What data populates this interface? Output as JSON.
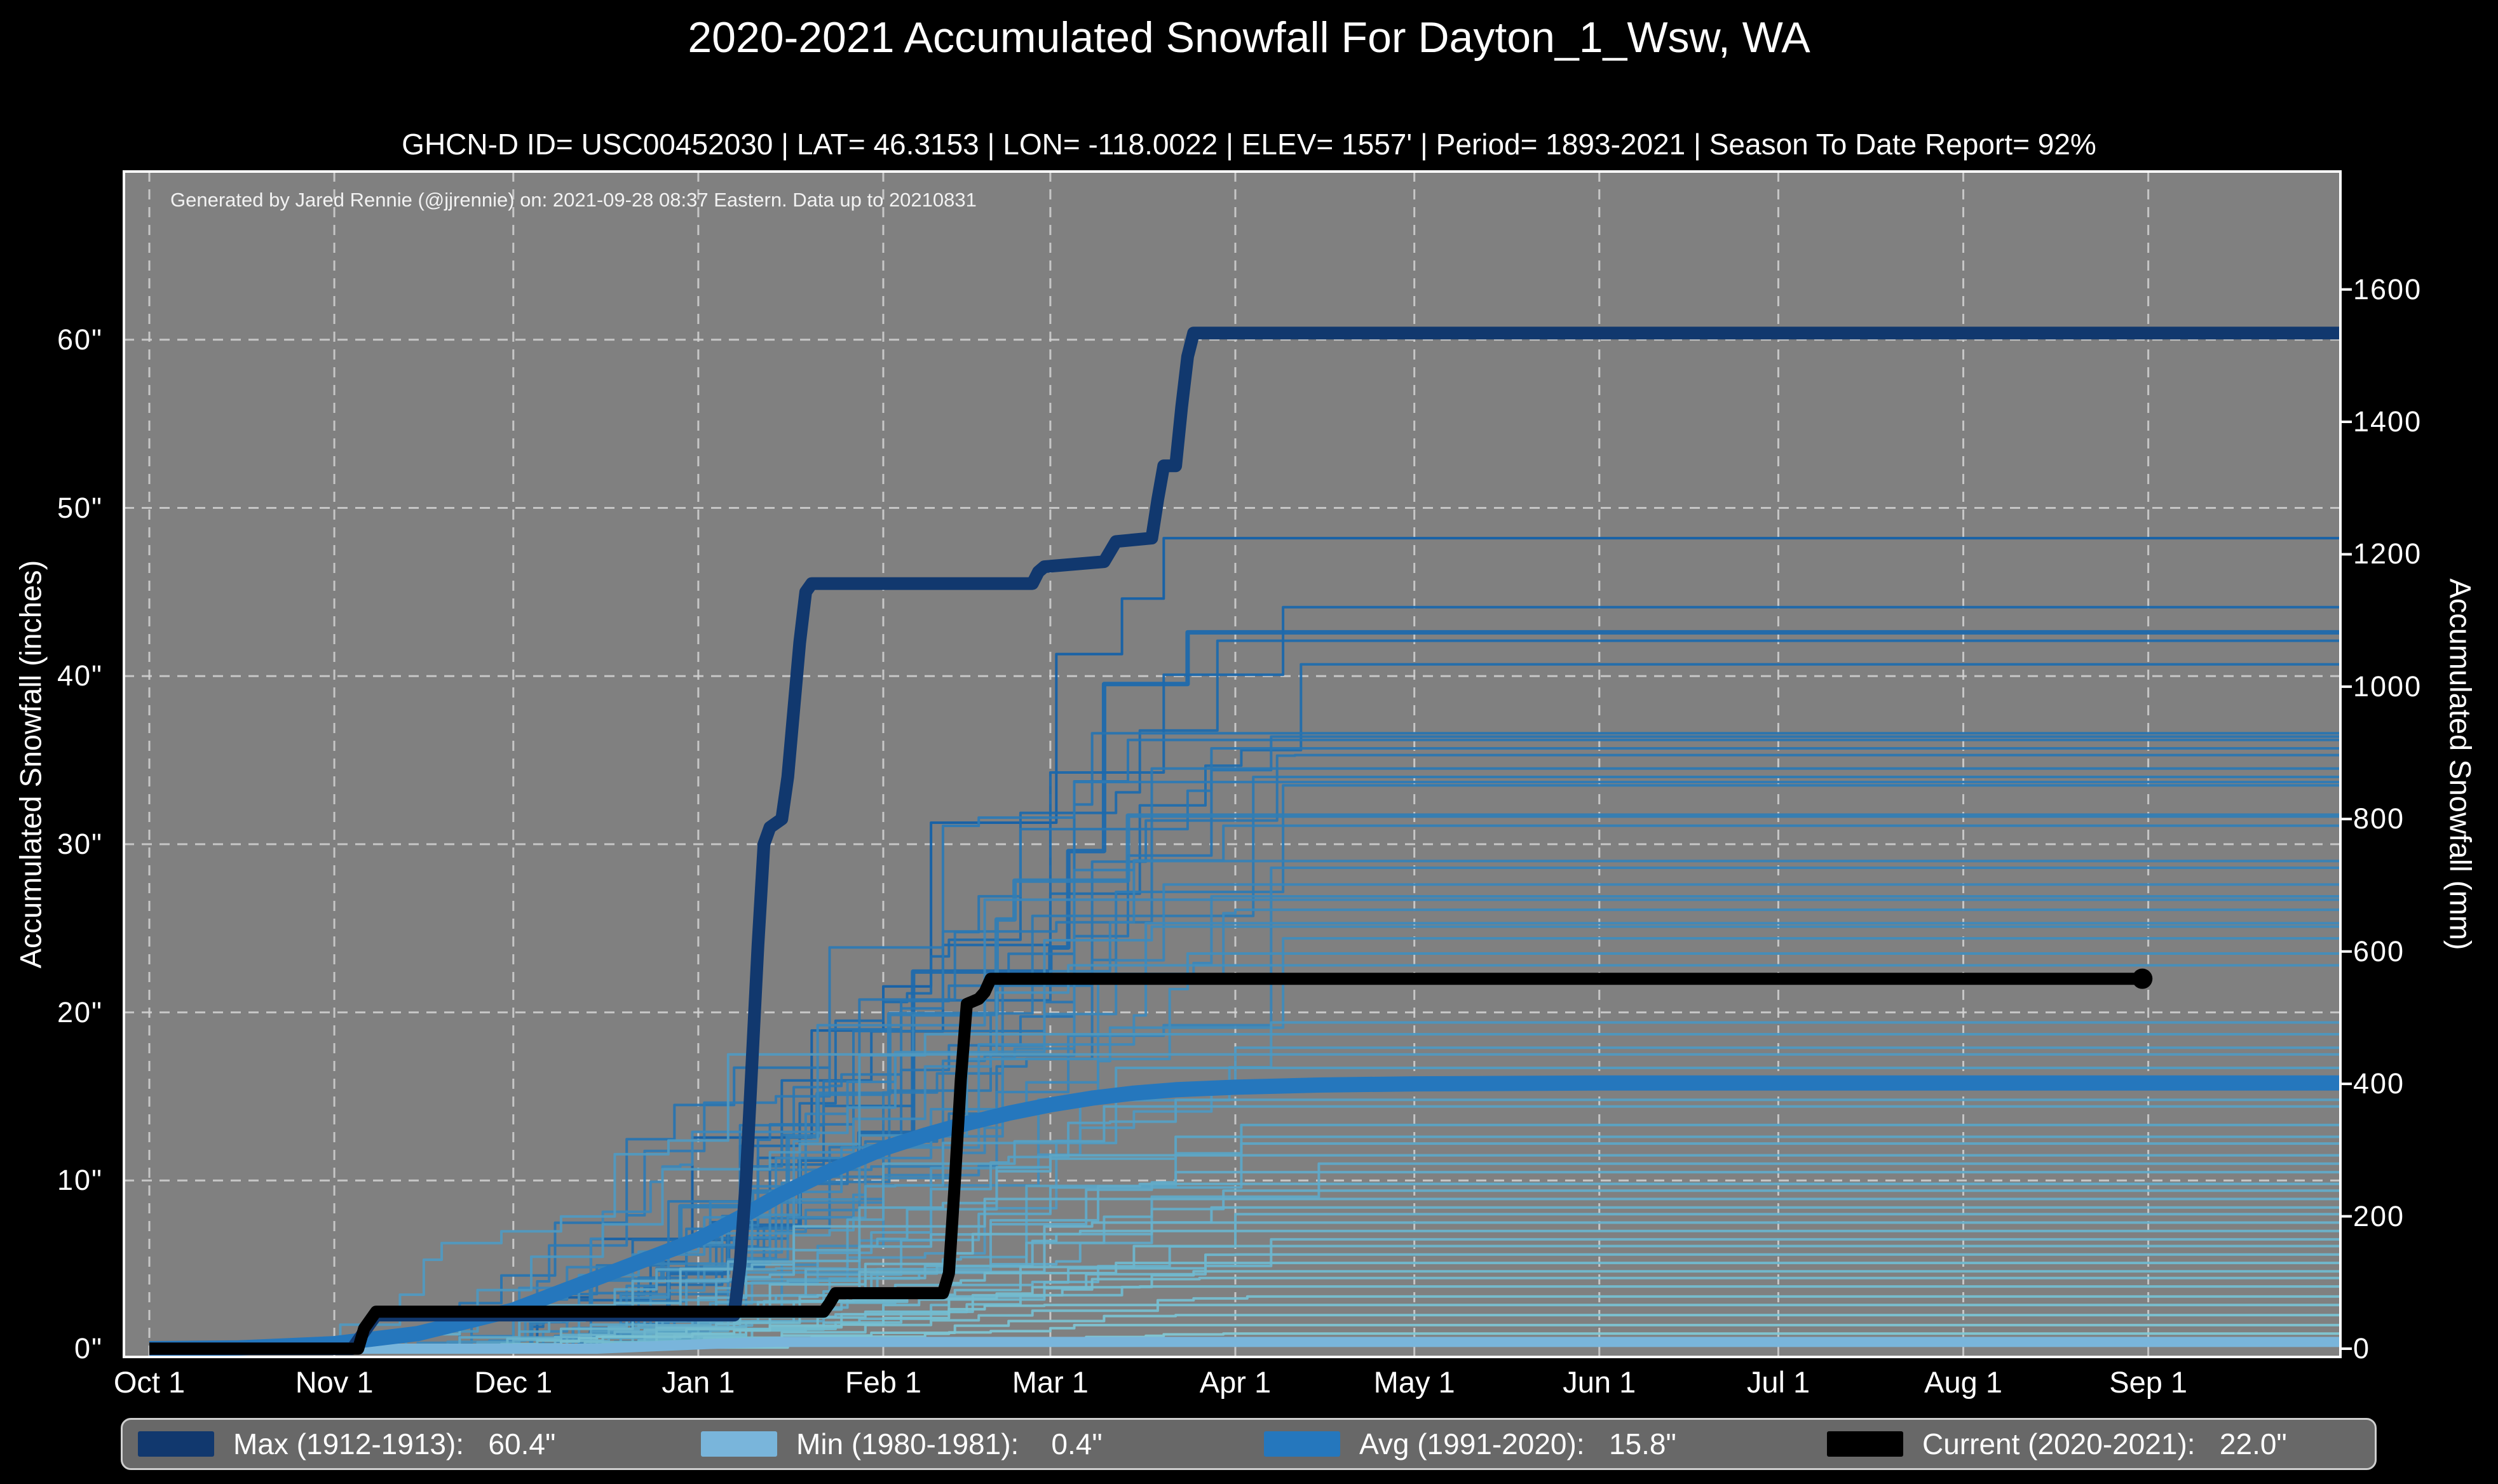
{
  "header": {
    "title": "2020-2021 Accumulated Snowfall For Dayton_1_Wsw, WA",
    "subtitle": "GHCN-D ID= USC00452030 | LAT= 46.3153 | LON= -118.0022 | ELEV= 1557' | Period= 1893-2021 | Season To Date Report= 92%"
  },
  "annotation": "Generated by Jared Rennie (@jjrennie) on: 2021-09-28 08:37 Eastern. Data up to 20210831",
  "axes": {
    "left_label": "Accumulated Snowfall (inches)",
    "right_label": "Accumulated Snowfall (mm)"
  },
  "colors": {
    "page_bg": "#000000",
    "plot_bg": "#808080",
    "grid": "#d3d3d3",
    "spine": "#ffffff",
    "text": "#ffffff",
    "annotation_text": "#f2f2f2",
    "legend_bg": "#686868",
    "legend_border": "#cfcfcf",
    "max": "#11386e",
    "min": "#79b5db",
    "avg": "#2577bd",
    "current": "#000000",
    "season_low": "#85ccd6",
    "season_high": "#1360a8"
  },
  "legend": {
    "items": [
      {
        "name": "max",
        "label": "Max (1912-1913):   60.4\"",
        "color_key": "max"
      },
      {
        "name": "min",
        "label": "Min (1980-1981):    0.4\"",
        "color_key": "min"
      },
      {
        "name": "avg",
        "label": "Avg (1991-2020):   15.8\"",
        "color_key": "avg"
      },
      {
        "name": "current",
        "label": "Current (2020-2021):   22.0\"",
        "color_key": "current"
      }
    ]
  },
  "chart_data": {
    "type": "line",
    "title": "2020-2021 Accumulated Snowfall For Dayton_1_Wsw, WA",
    "xlabel": "",
    "ylabel_left": "Accumulated Snowfall (inches)",
    "ylabel_right": "Accumulated Snowfall (mm)",
    "x_unit": "days_since_oct_1",
    "xlim_days": [
      -4,
      367
    ],
    "ylim_inches": [
      0,
      70
    ],
    "grid": true,
    "legend_position": "bottom",
    "x_ticks": [
      {
        "day": 0,
        "label": "Oct 1"
      },
      {
        "day": 31,
        "label": "Nov 1"
      },
      {
        "day": 61,
        "label": "Dec 1"
      },
      {
        "day": 92,
        "label": "Jan 1"
      },
      {
        "day": 123,
        "label": "Feb 1"
      },
      {
        "day": 151,
        "label": "Mar 1"
      },
      {
        "day": 182,
        "label": "Apr 1"
      },
      {
        "day": 212,
        "label": "May 1"
      },
      {
        "day": 243,
        "label": "Jun 1"
      },
      {
        "day": 273,
        "label": "Jul 1"
      },
      {
        "day": 304,
        "label": "Aug 1"
      },
      {
        "day": 335,
        "label": "Sep 1"
      }
    ],
    "y_ticks_inches": [
      {
        "v": 0,
        "label": "0\""
      },
      {
        "v": 10,
        "label": "10\""
      },
      {
        "v": 20,
        "label": "20\""
      },
      {
        "v": 30,
        "label": "30\""
      },
      {
        "v": 40,
        "label": "40\""
      },
      {
        "v": 50,
        "label": "50\""
      },
      {
        "v": 60,
        "label": "60\""
      }
    ],
    "y_ticks_mm": [
      {
        "v": 0,
        "label": "0"
      },
      {
        "v": 200,
        "label": "200"
      },
      {
        "v": 400,
        "label": "400"
      },
      {
        "v": 600,
        "label": "600"
      },
      {
        "v": 800,
        "label": "800"
      },
      {
        "v": 1000,
        "label": "1000"
      },
      {
        "v": 1200,
        "label": "1200"
      },
      {
        "v": 1400,
        "label": "1400"
      },
      {
        "v": 1600,
        "label": "1600"
      }
    ],
    "series": [
      {
        "name": "Max (1912-1913)",
        "final_inches": 60.4,
        "color_key": "max",
        "stroke_width": 20,
        "points": [
          [
            0,
            0
          ],
          [
            34,
            0
          ],
          [
            36,
            1
          ],
          [
            38,
            2
          ],
          [
            98,
            2
          ],
          [
            99,
            5
          ],
          [
            100,
            10
          ],
          [
            101,
            17
          ],
          [
            102,
            24
          ],
          [
            103,
            30
          ],
          [
            104,
            31
          ],
          [
            106,
            31.5
          ],
          [
            107,
            34
          ],
          [
            108,
            38
          ],
          [
            109,
            42
          ],
          [
            110,
            45
          ],
          [
            111,
            45.5
          ],
          [
            148,
            45.5
          ],
          [
            149,
            46.2
          ],
          [
            150,
            46.5
          ],
          [
            160,
            46.8
          ],
          [
            161,
            47.4
          ],
          [
            162,
            48
          ],
          [
            168,
            48.2
          ],
          [
            169,
            50.5
          ],
          [
            170,
            52.5
          ],
          [
            172,
            52.5
          ],
          [
            173,
            56
          ],
          [
            174,
            59
          ],
          [
            175,
            60.4
          ],
          [
            367,
            60.4
          ]
        ]
      },
      {
        "name": "Min (1980-1981)",
        "final_inches": 0.4,
        "color_key": "min",
        "stroke_width": 16,
        "points": [
          [
            0,
            0
          ],
          [
            75,
            0
          ],
          [
            85,
            0.15
          ],
          [
            95,
            0.3
          ],
          [
            105,
            0.4
          ],
          [
            367,
            0.4
          ]
        ]
      },
      {
        "name": "Avg (1991-2020)",
        "final_inches": 15.8,
        "color_key": "avg",
        "stroke_width": 24,
        "points": [
          [
            0,
            0
          ],
          [
            15,
            0.05
          ],
          [
            31,
            0.3
          ],
          [
            45,
            0.9
          ],
          [
            61,
            2.3
          ],
          [
            75,
            4.2
          ],
          [
            92,
            6.5
          ],
          [
            99,
            7.8
          ],
          [
            106,
            9.2
          ],
          [
            113,
            10.4
          ],
          [
            123,
            11.9
          ],
          [
            130,
            12.7
          ],
          [
            137,
            13.4
          ],
          [
            144,
            14
          ],
          [
            151,
            14.5
          ],
          [
            158,
            14.9
          ],
          [
            165,
            15.2
          ],
          [
            172,
            15.4
          ],
          [
            182,
            15.55
          ],
          [
            196,
            15.68
          ],
          [
            212,
            15.75
          ],
          [
            243,
            15.8
          ],
          [
            367,
            15.8
          ]
        ]
      },
      {
        "name": "Current (2020-2021)",
        "final_inches": 22.0,
        "color_key": "current",
        "stroke_width": 19,
        "points": [
          [
            0,
            0
          ],
          [
            35,
            0
          ],
          [
            36,
            1.2
          ],
          [
            38,
            2.2
          ],
          [
            113,
            2.2
          ],
          [
            114,
            2.7
          ],
          [
            115,
            3.3
          ],
          [
            133,
            3.3
          ],
          [
            134,
            4.5
          ],
          [
            135,
            10
          ],
          [
            136,
            16
          ],
          [
            137,
            20.5
          ],
          [
            139,
            20.8
          ],
          [
            140,
            21.2
          ],
          [
            141,
            22
          ],
          [
            334,
            22
          ]
        ],
        "end_marker": {
          "day": 334,
          "value": 22.0
        }
      }
    ],
    "background_seasons": {
      "description": "All seasons 1893-2021, colored light (low total) to dark blue (high total)",
      "fields": [
        "final_inches",
        "onset_day",
        "end_day",
        "stroke_width"
      ],
      "rows": [
        [
          48.2,
          55,
          178,
          4
        ],
        [
          44.1,
          60,
          190,
          4
        ],
        [
          42.6,
          70,
          175,
          7
        ],
        [
          42.1,
          58,
          179,
          4
        ],
        [
          40.7,
          65,
          195,
          4
        ],
        [
          36.6,
          40,
          160,
          4
        ],
        [
          36.4,
          72,
          188,
          4
        ],
        [
          36.2,
          66,
          170,
          4
        ],
        [
          35.7,
          50,
          178,
          4
        ],
        [
          35.3,
          75,
          192,
          4
        ],
        [
          34.5,
          62,
          168,
          4
        ],
        [
          34.0,
          68,
          185,
          4
        ],
        [
          33.7,
          45,
          155,
          4
        ],
        [
          33.5,
          70,
          190,
          4
        ],
        [
          31.7,
          57,
          172,
          7
        ],
        [
          31.1,
          63,
          180,
          4
        ],
        [
          29.0,
          48,
          165,
          4
        ],
        [
          28.6,
          74,
          195,
          4
        ],
        [
          27.6,
          59,
          170,
          4
        ],
        [
          26.9,
          66,
          185,
          4
        ],
        [
          26.7,
          42,
          150,
          4
        ],
        [
          26.1,
          70,
          182,
          4
        ],
        [
          25.3,
          61,
          176,
          4
        ],
        [
          25.1,
          53,
          168,
          4
        ],
        [
          24.4,
          77,
          198,
          4
        ],
        [
          23.5,
          64,
          174,
          4
        ],
        [
          22.8,
          47,
          158,
          4
        ],
        [
          19.4,
          69,
          188,
          4
        ],
        [
          18.7,
          35,
          130,
          4
        ],
        [
          17.9,
          72,
          192,
          4
        ],
        [
          17.5,
          22,
          100,
          4
        ],
        [
          16.7,
          55,
          170,
          4
        ],
        [
          14.8,
          62,
          180,
          4
        ],
        [
          14.4,
          49,
          160,
          4
        ],
        [
          13.3,
          71,
          190,
          4
        ],
        [
          12.6,
          58,
          172,
          4
        ],
        [
          12.2,
          66,
          184,
          4
        ],
        [
          11.5,
          44,
          152,
          4
        ],
        [
          11.0,
          74,
          196,
          4
        ],
        [
          10.5,
          60,
          175,
          4
        ],
        [
          9.8,
          52,
          166,
          4
        ],
        [
          9.4,
          68,
          186,
          4
        ],
        [
          8.9,
          24,
          140,
          4
        ],
        [
          8.4,
          63,
          178,
          4
        ],
        [
          8.0,
          70,
          192,
          4
        ],
        [
          7.5,
          56,
          168,
          4
        ],
        [
          7.0,
          46,
          156,
          4
        ],
        [
          6.5,
          73,
          194,
          4
        ],
        [
          6.1,
          59,
          174,
          4
        ],
        [
          5.6,
          65,
          182,
          4
        ],
        [
          5.1,
          50,
          162,
          4
        ],
        [
          4.6,
          69,
          188,
          4
        ],
        [
          4.2,
          61,
          176,
          4
        ],
        [
          3.7,
          54,
          166,
          4
        ],
        [
          3.1,
          67,
          184,
          4
        ],
        [
          2.6,
          43,
          150,
          4
        ],
        [
          2.0,
          62,
          172,
          4
        ],
        [
          1.4,
          57,
          164,
          4
        ],
        [
          0.9,
          72,
          180,
          4
        ]
      ]
    }
  }
}
